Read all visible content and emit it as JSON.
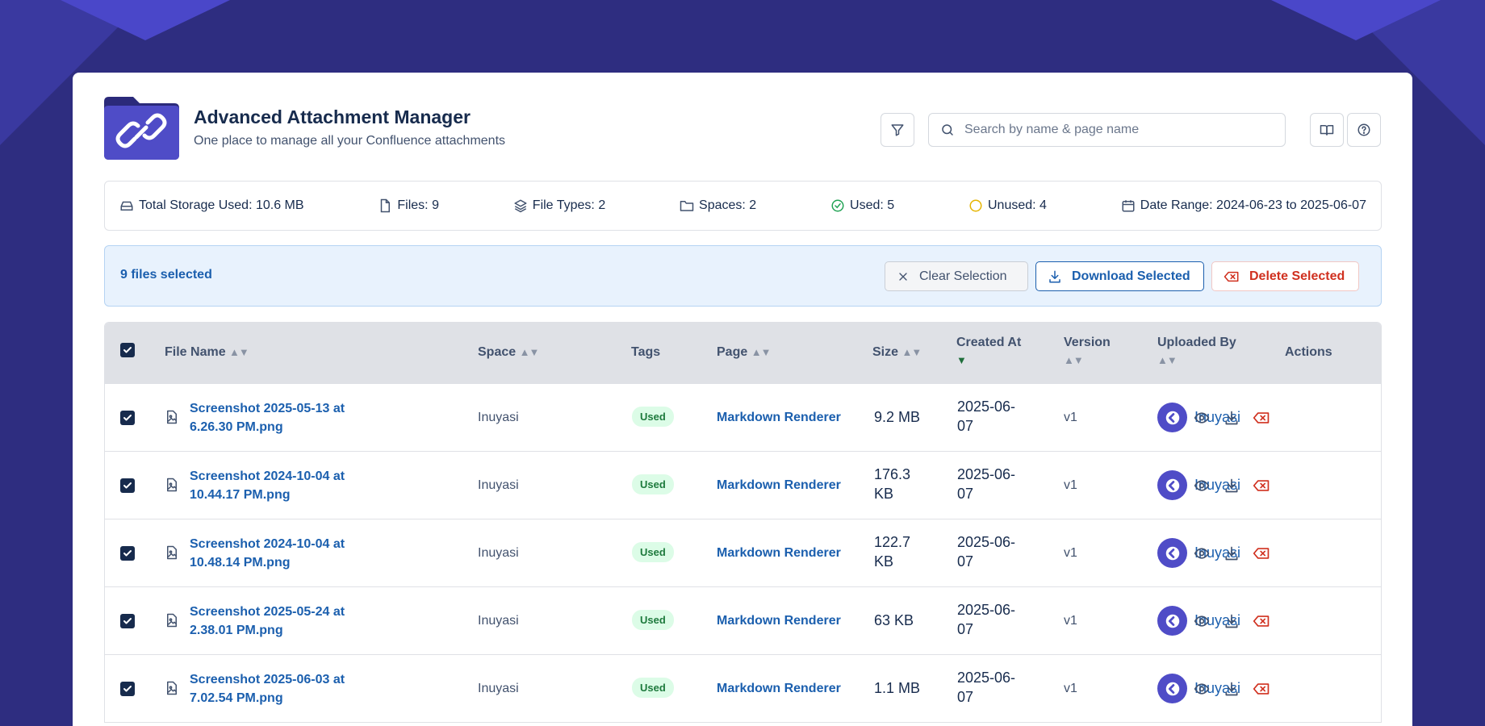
{
  "header": {
    "title": "Advanced Attachment Manager",
    "subtitle": "One place to manage all your Confluence attachments",
    "search_placeholder": "Search by name & page name"
  },
  "stats": {
    "storage": "Total Storage Used: 10.6 MB",
    "files": "Files: 9",
    "file_types": "File Types: 2",
    "spaces": "Spaces: 2",
    "used": "Used: 5",
    "unused": "Unused: 4",
    "date_range": "Date Range: 2024-06-23 to 2025-06-07"
  },
  "selection": {
    "count_label": "9 files selected",
    "clear_label": "Clear Selection",
    "download_label": "Download Selected",
    "delete_label": "Delete Selected"
  },
  "table": {
    "columns": {
      "file_name": "File Name",
      "space": "Space",
      "tags": "Tags",
      "page": "Page",
      "size": "Size",
      "created_at": "Created At",
      "version": "Version",
      "uploaded_by": "Uploaded By",
      "actions": "Actions"
    },
    "rows": [
      {
        "file_line1": "Screenshot 2025-05-13 at",
        "file_line2": "6.26.30 PM.png",
        "space": "Inuyasi",
        "tag": "Used",
        "page": "Markdown Renderer",
        "size1": "9.2 MB",
        "size2": "",
        "created1": "2025-06-",
        "created2": "07",
        "version": "v1",
        "uploader": "Inuyasi"
      },
      {
        "file_line1": "Screenshot 2024-10-04 at",
        "file_line2": "10.44.17 PM.png",
        "space": "Inuyasi",
        "tag": "Used",
        "page": "Markdown Renderer",
        "size1": "176.3",
        "size2": "KB",
        "created1": "2025-06-",
        "created2": "07",
        "version": "v1",
        "uploader": "Inuyasi"
      },
      {
        "file_line1": "Screenshot 2024-10-04 at",
        "file_line2": "10.48.14 PM.png",
        "space": "Inuyasi",
        "tag": "Used",
        "page": "Markdown Renderer",
        "size1": "122.7",
        "size2": "KB",
        "created1": "2025-06-",
        "created2": "07",
        "version": "v1",
        "uploader": "Inuyasi"
      },
      {
        "file_line1": "Screenshot 2025-05-24 at",
        "file_line2": "2.38.01 PM.png",
        "space": "Inuyasi",
        "tag": "Used",
        "page": "Markdown Renderer",
        "size1": "63 KB",
        "size2": "",
        "created1": "2025-06-",
        "created2": "07",
        "version": "v1",
        "uploader": "Inuyasi"
      },
      {
        "file_line1": "Screenshot 2025-06-03 at",
        "file_line2": "7.02.54 PM.png",
        "space": "Inuyasi",
        "tag": "Used",
        "page": "Markdown Renderer",
        "size1": "1.1 MB",
        "size2": "",
        "created1": "2025-06-",
        "created2": "07",
        "version": "v1",
        "uploader": "Inuyasi"
      }
    ]
  },
  "colors": {
    "background": "#2e2d80",
    "brand": "#4f4cc7",
    "link": "#1b5fae",
    "danger": "#d0301f",
    "used_tag_bg": "#dcfce7"
  },
  "icons": {
    "logo": "folder-link-icon",
    "filter": "filter-icon",
    "search": "search-icon",
    "book": "book-icon",
    "help": "help-icon"
  }
}
